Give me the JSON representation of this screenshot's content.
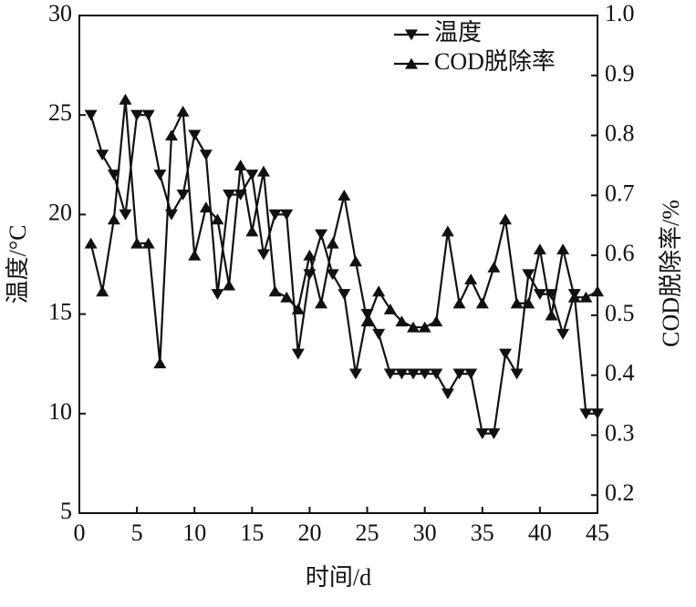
{
  "chart_data": {
    "type": "line",
    "x_label": "时间/d",
    "y_label": "温度/°C",
    "y2_label": "COD脱除率/%",
    "x": [
      1,
      2,
      3,
      4,
      5,
      6,
      7,
      8,
      9,
      10,
      11,
      12,
      13,
      14,
      15,
      16,
      17,
      18,
      19,
      20,
      21,
      22,
      23,
      24,
      25,
      26,
      27,
      28,
      29,
      30,
      31,
      32,
      33,
      34,
      35,
      36,
      37,
      38,
      39,
      40,
      41,
      42,
      43,
      44,
      45
    ],
    "xlim": [
      0,
      45
    ],
    "xticks": [
      0,
      5,
      10,
      15,
      20,
      25,
      30,
      35,
      40,
      45
    ],
    "ylim": [
      5,
      30
    ],
    "yticks": [
      5,
      10,
      15,
      20,
      25,
      30
    ],
    "y2lim": [
      0.17,
      1.0
    ],
    "y2ticks": [
      0.2,
      0.3,
      0.4,
      0.5,
      0.6,
      0.7,
      0.8,
      0.9,
      {
        "value": 1.0,
        "label": "1.0"
      }
    ],
    "legend": "upper right",
    "series": [
      {
        "name": "温度",
        "color": "#111111",
        "marker": "down-triangle",
        "values": [
          25,
          23,
          22,
          20,
          25,
          25,
          22,
          20,
          21,
          24,
          23,
          16,
          21,
          21,
          22,
          18,
          20,
          20,
          13,
          17,
          19,
          17,
          16,
          12,
          15,
          14,
          12,
          12,
          12,
          12,
          12,
          11,
          12,
          12,
          9,
          9,
          13,
          12,
          17,
          16,
          16,
          14,
          16,
          10,
          10
        ]
      },
      {
        "name": "COD脱除率",
        "color": "#111111",
        "marker": "up-triangle",
        "axis": "y2",
        "values": [
          0.62,
          0.54,
          0.66,
          0.86,
          0.62,
          0.62,
          0.42,
          0.8,
          0.84,
          0.6,
          0.68,
          0.66,
          0.55,
          0.75,
          0.64,
          0.74,
          0.54,
          0.53,
          0.51,
          0.6,
          0.52,
          0.62,
          0.7,
          0.59,
          0.49,
          0.54,
          0.51,
          0.49,
          0.48,
          0.48,
          0.49,
          0.64,
          0.52,
          0.56,
          0.52,
          0.58,
          0.66,
          0.52,
          0.52,
          0.61,
          0.5,
          0.61,
          0.53,
          0.53,
          0.54
        ]
      }
    ]
  }
}
